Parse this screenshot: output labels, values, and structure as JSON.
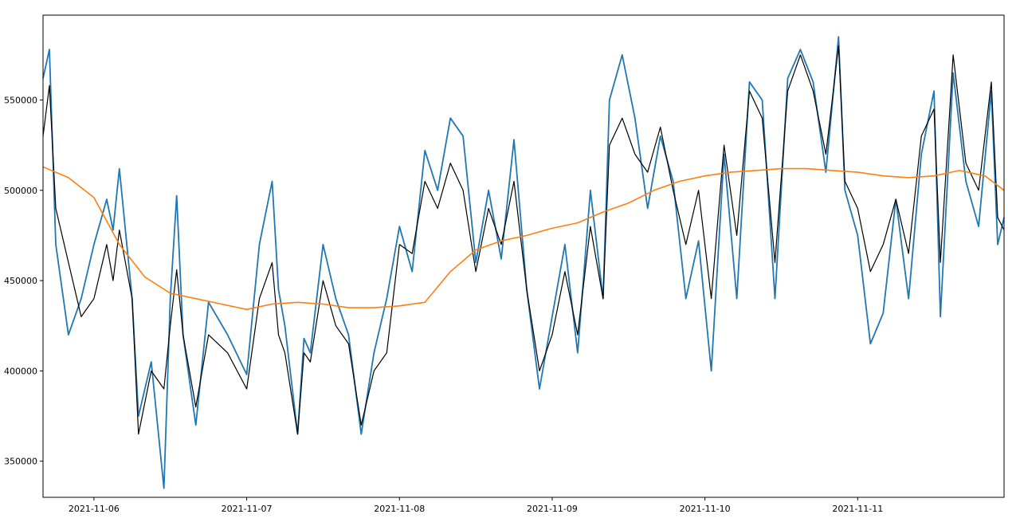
{
  "chart_data": {
    "type": "line",
    "title": "",
    "xlabel": "",
    "ylabel": "",
    "xlim": [
      "2021-11-05 16:00",
      "2021-11-11 23:00"
    ],
    "ylim": [
      330000,
      597000
    ],
    "grid": false,
    "x_ticks": [
      "2021-11-06",
      "2021-11-07",
      "2021-11-08",
      "2021-11-09",
      "2021-11-10",
      "2021-11-11"
    ],
    "y_ticks": [
      350000,
      400000,
      450000,
      500000,
      550000
    ],
    "series_colors": {
      "observed": "#1f77b4",
      "model": "#000000",
      "trend": "#ff7f0e"
    },
    "series": [
      {
        "role": "observed",
        "x": [
          "2021-11-05 16:00",
          "2021-11-05 17:00",
          "2021-11-05 18:00",
          "2021-11-05 20:00",
          "2021-11-05 22:00",
          "2021-11-06 00:00",
          "2021-11-06 02:00",
          "2021-11-06 03:00",
          "2021-11-06 04:00",
          "2021-11-06 06:00",
          "2021-11-06 07:00",
          "2021-11-06 09:00",
          "2021-11-06 11:00",
          "2021-11-06 12:00",
          "2021-11-06 13:00",
          "2021-11-06 14:00",
          "2021-11-06 16:00",
          "2021-11-06 18:00",
          "2021-11-06 21:00",
          "2021-11-07 00:00",
          "2021-11-07 02:00",
          "2021-11-07 04:00",
          "2021-11-07 05:00",
          "2021-11-07 06:00",
          "2021-11-07 08:00",
          "2021-11-07 09:00",
          "2021-11-07 10:00",
          "2021-11-07 12:00",
          "2021-11-07 14:00",
          "2021-11-07 16:00",
          "2021-11-07 18:00",
          "2021-11-07 20:00",
          "2021-11-07 22:00",
          "2021-11-08 00:00",
          "2021-11-08 02:00",
          "2021-11-08 04:00",
          "2021-11-08 06:00",
          "2021-11-08 08:00",
          "2021-11-08 10:00",
          "2021-11-08 12:00",
          "2021-11-08 14:00",
          "2021-11-08 16:00",
          "2021-11-08 18:00",
          "2021-11-08 20:00",
          "2021-11-08 22:00",
          "2021-11-09 00:00",
          "2021-11-09 02:00",
          "2021-11-09 04:00",
          "2021-11-09 06:00",
          "2021-11-09 08:00",
          "2021-11-09 09:00",
          "2021-11-09 11:00",
          "2021-11-09 13:00",
          "2021-11-09 15:00",
          "2021-11-09 17:00",
          "2021-11-09 19:00",
          "2021-11-09 21:00",
          "2021-11-09 23:00",
          "2021-11-10 01:00",
          "2021-11-10 03:00",
          "2021-11-10 05:00",
          "2021-11-10 07:00",
          "2021-11-10 09:00",
          "2021-11-10 11:00",
          "2021-11-10 13:00",
          "2021-11-10 15:00",
          "2021-11-10 17:00",
          "2021-11-10 19:00",
          "2021-11-10 21:00",
          "2021-11-10 22:00",
          "2021-11-11 00:00",
          "2021-11-11 02:00",
          "2021-11-11 04:00",
          "2021-11-11 06:00",
          "2021-11-11 08:00",
          "2021-11-11 10:00",
          "2021-11-11 12:00",
          "2021-11-11 13:00",
          "2021-11-11 15:00",
          "2021-11-11 17:00",
          "2021-11-11 19:00",
          "2021-11-11 21:00",
          "2021-11-11 22:00",
          "2021-11-11 23:00"
        ],
        "y": [
          562000,
          578000,
          470000,
          420000,
          440000,
          470000,
          495000,
          478000,
          512000,
          440000,
          375000,
          405000,
          335000,
          440000,
          497000,
          420000,
          370000,
          438000,
          420000,
          398000,
          470000,
          505000,
          445000,
          425000,
          365000,
          418000,
          410000,
          470000,
          440000,
          420000,
          365000,
          410000,
          440000,
          480000,
          455000,
          522000,
          500000,
          540000,
          530000,
          460000,
          500000,
          462000,
          528000,
          445000,
          390000,
          430000,
          470000,
          410000,
          500000,
          440000,
          550000,
          575000,
          540000,
          490000,
          530000,
          505000,
          440000,
          472000,
          400000,
          520000,
          440000,
          560000,
          550000,
          440000,
          562000,
          578000,
          560000,
          510000,
          585000,
          500000,
          475000,
          415000,
          432000,
          495000,
          440000,
          520000,
          555000,
          430000,
          565000,
          505000,
          480000,
          555000,
          470000,
          485000
        ]
      },
      {
        "role": "model",
        "x": [
          "2021-11-05 16:00",
          "2021-11-05 17:00",
          "2021-11-05 18:00",
          "2021-11-05 20:00",
          "2021-11-05 22:00",
          "2021-11-06 00:00",
          "2021-11-06 02:00",
          "2021-11-06 03:00",
          "2021-11-06 04:00",
          "2021-11-06 06:00",
          "2021-11-06 07:00",
          "2021-11-06 09:00",
          "2021-11-06 11:00",
          "2021-11-06 12:00",
          "2021-11-06 13:00",
          "2021-11-06 14:00",
          "2021-11-06 16:00",
          "2021-11-06 18:00",
          "2021-11-06 21:00",
          "2021-11-07 00:00",
          "2021-11-07 02:00",
          "2021-11-07 04:00",
          "2021-11-07 05:00",
          "2021-11-07 06:00",
          "2021-11-07 08:00",
          "2021-11-07 09:00",
          "2021-11-07 10:00",
          "2021-11-07 12:00",
          "2021-11-07 14:00",
          "2021-11-07 16:00",
          "2021-11-07 18:00",
          "2021-11-07 20:00",
          "2021-11-07 22:00",
          "2021-11-08 00:00",
          "2021-11-08 02:00",
          "2021-11-08 04:00",
          "2021-11-08 06:00",
          "2021-11-08 08:00",
          "2021-11-08 10:00",
          "2021-11-08 12:00",
          "2021-11-08 14:00",
          "2021-11-08 16:00",
          "2021-11-08 18:00",
          "2021-11-08 20:00",
          "2021-11-08 22:00",
          "2021-11-09 00:00",
          "2021-11-09 02:00",
          "2021-11-09 04:00",
          "2021-11-09 06:00",
          "2021-11-09 08:00",
          "2021-11-09 09:00",
          "2021-11-09 11:00",
          "2021-11-09 13:00",
          "2021-11-09 15:00",
          "2021-11-09 17:00",
          "2021-11-09 19:00",
          "2021-11-09 21:00",
          "2021-11-09 23:00",
          "2021-11-10 01:00",
          "2021-11-10 03:00",
          "2021-11-10 05:00",
          "2021-11-10 07:00",
          "2021-11-10 09:00",
          "2021-11-10 11:00",
          "2021-11-10 13:00",
          "2021-11-10 15:00",
          "2021-11-10 17:00",
          "2021-11-10 19:00",
          "2021-11-10 21:00",
          "2021-11-10 22:00",
          "2021-11-11 00:00",
          "2021-11-11 02:00",
          "2021-11-11 04:00",
          "2021-11-11 06:00",
          "2021-11-11 08:00",
          "2021-11-11 10:00",
          "2021-11-11 12:00",
          "2021-11-11 13:00",
          "2021-11-11 15:00",
          "2021-11-11 17:00",
          "2021-11-11 19:00",
          "2021-11-11 21:00",
          "2021-11-11 22:00",
          "2021-11-11 23:00"
        ],
        "y": [
          530000,
          558000,
          490000,
          460000,
          430000,
          440000,
          470000,
          450000,
          478000,
          440000,
          365000,
          400000,
          390000,
          425000,
          456000,
          420000,
          380000,
          420000,
          410000,
          390000,
          440000,
          460000,
          420000,
          410000,
          365000,
          410000,
          405000,
          450000,
          425000,
          415000,
          370000,
          400000,
          410000,
          470000,
          465000,
          505000,
          490000,
          515000,
          500000,
          455000,
          490000,
          470000,
          505000,
          445000,
          400000,
          420000,
          455000,
          420000,
          480000,
          440000,
          525000,
          540000,
          520000,
          510000,
          535000,
          500000,
          470000,
          500000,
          440000,
          525000,
          475000,
          555000,
          540000,
          460000,
          555000,
          575000,
          555000,
          520000,
          580000,
          505000,
          490000,
          455000,
          470000,
          495000,
          465000,
          530000,
          545000,
          460000,
          575000,
          515000,
          500000,
          560000,
          485000,
          478000
        ]
      },
      {
        "role": "trend",
        "x": [
          "2021-11-05 16:00",
          "2021-11-05 20:00",
          "2021-11-06 00:00",
          "2021-11-06 04:00",
          "2021-11-06 08:00",
          "2021-11-06 12:00",
          "2021-11-06 16:00",
          "2021-11-06 20:00",
          "2021-11-07 00:00",
          "2021-11-07 04:00",
          "2021-11-07 08:00",
          "2021-11-07 12:00",
          "2021-11-07 16:00",
          "2021-11-07 20:00",
          "2021-11-08 00:00",
          "2021-11-08 04:00",
          "2021-11-08 08:00",
          "2021-11-08 12:00",
          "2021-11-08 16:00",
          "2021-11-08 20:00",
          "2021-11-09 00:00",
          "2021-11-09 04:00",
          "2021-11-09 08:00",
          "2021-11-09 12:00",
          "2021-11-09 16:00",
          "2021-11-09 20:00",
          "2021-11-10 00:00",
          "2021-11-10 04:00",
          "2021-11-10 08:00",
          "2021-11-10 12:00",
          "2021-11-10 16:00",
          "2021-11-10 20:00",
          "2021-11-11 00:00",
          "2021-11-11 04:00",
          "2021-11-11 08:00",
          "2021-11-11 12:00",
          "2021-11-11 16:00",
          "2021-11-11 20:00",
          "2021-11-11 23:00"
        ],
        "y": [
          513000,
          507000,
          496000,
          470000,
          452000,
          443000,
          440000,
          437000,
          434000,
          437000,
          438000,
          437000,
          435000,
          435000,
          436000,
          438000,
          455000,
          467000,
          472000,
          475000,
          479000,
          482000,
          488000,
          493000,
          500000,
          505000,
          508000,
          510000,
          511000,
          512000,
          512000,
          511000,
          510000,
          508000,
          507000,
          508000,
          511000,
          508000,
          500000
        ]
      }
    ]
  }
}
